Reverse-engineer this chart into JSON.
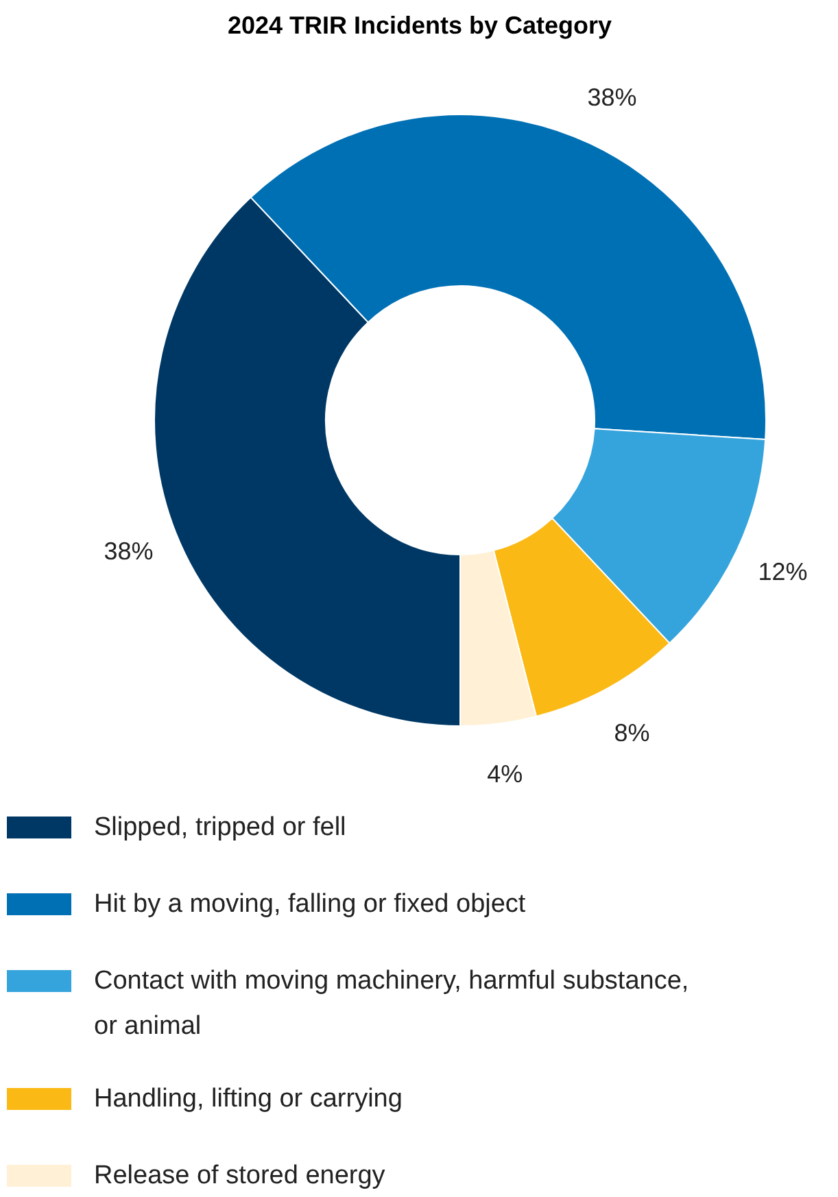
{
  "chart_data": {
    "type": "donut",
    "title": "2024 TRIR Incidents by Category",
    "categories": [
      "Slipped, tripped or fell",
      "Hit by a moving, falling or fixed object",
      "Contact with moving machinery, harmful substance, or animal",
      "Handling, lifting or carrying",
      "Release of stored energy"
    ],
    "values": [
      38,
      38,
      12,
      8,
      4
    ],
    "colors": [
      "#003865",
      "#0070b5",
      "#35a4dc",
      "#fbb916",
      "#fff0d6"
    ],
    "value_labels": [
      "38%",
      "38%",
      "12%",
      "8%",
      "4%"
    ],
    "legend": "bottom"
  }
}
